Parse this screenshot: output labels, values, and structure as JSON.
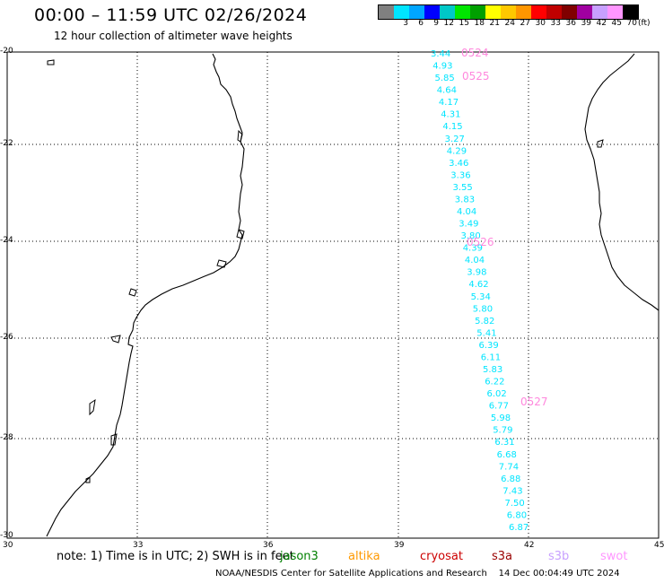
{
  "header": {
    "title": "00:00 – 11:59 UTC 02/26/2024",
    "subtitle": "12 hour collection of altimeter wave heights"
  },
  "legend": {
    "colors": [
      "#808080",
      "#00e5ff",
      "#00a6ff",
      "#0000ff",
      "#00c8c8",
      "#00e600",
      "#00a000",
      "#ffff00",
      "#ffc800",
      "#ff9600",
      "#ff0000",
      "#c00000",
      "#800000",
      "#a000a0",
      "#c8a0ff",
      "#ff96ff",
      "#000000"
    ],
    "labels": [
      "",
      "3",
      "6",
      "9",
      "12",
      "15",
      "18",
      "21",
      "24",
      "27",
      "30",
      "33",
      "36",
      "39",
      "42",
      "45",
      "70"
    ],
    "unit": "(ft)"
  },
  "axes": {
    "lat_labels": [
      "-20",
      "-22",
      "-24",
      "-26",
      "-28",
      "-30"
    ],
    "lon_labels": [
      "30",
      "33",
      "36",
      "39",
      "42",
      "45"
    ]
  },
  "track": {
    "color": "#00e5ff",
    "values": [
      "3.44",
      "4.93",
      "5.85",
      "4.64",
      "4.17",
      "4.31",
      "4.15",
      "3.27",
      "4.29",
      "3.46",
      "3.36",
      "3.55",
      "3.83",
      "4.04",
      "3.49",
      "3.80",
      "4.39",
      "4.04",
      "3.98",
      "4.62",
      "5.34",
      "5.80",
      "5.82",
      "5.41",
      "6.39",
      "6.11",
      "5.83",
      "6.22",
      "6.02",
      "6.77",
      "5.98",
      "5.79",
      "6.31",
      "6.68",
      "7.74",
      "6.88",
      "7.43",
      "7.50",
      "6.80",
      "6.87"
    ],
    "time_labels": [
      "0524",
      "0525",
      "0526",
      "0527"
    ],
    "time_color": "#ff88dd"
  },
  "footer": {
    "note": "note: 1) Time is in UTC; 2) SWH is in feet",
    "satellites": [
      {
        "name": "jason3",
        "color": "#008000"
      },
      {
        "name": "altika",
        "color": "#ff9900"
      },
      {
        "name": "cryosat",
        "color": "#cc0000"
      },
      {
        "name": "s3a",
        "color": "#990000"
      },
      {
        "name": "s3b",
        "color": "#c8a0ff"
      },
      {
        "name": "swot",
        "color": "#ff96ff"
      }
    ],
    "credit": "NOAA/NESDIS Center for Satellite Applications and Research",
    "timestamp": "14 Dec 00:04:49 UTC 2024"
  }
}
